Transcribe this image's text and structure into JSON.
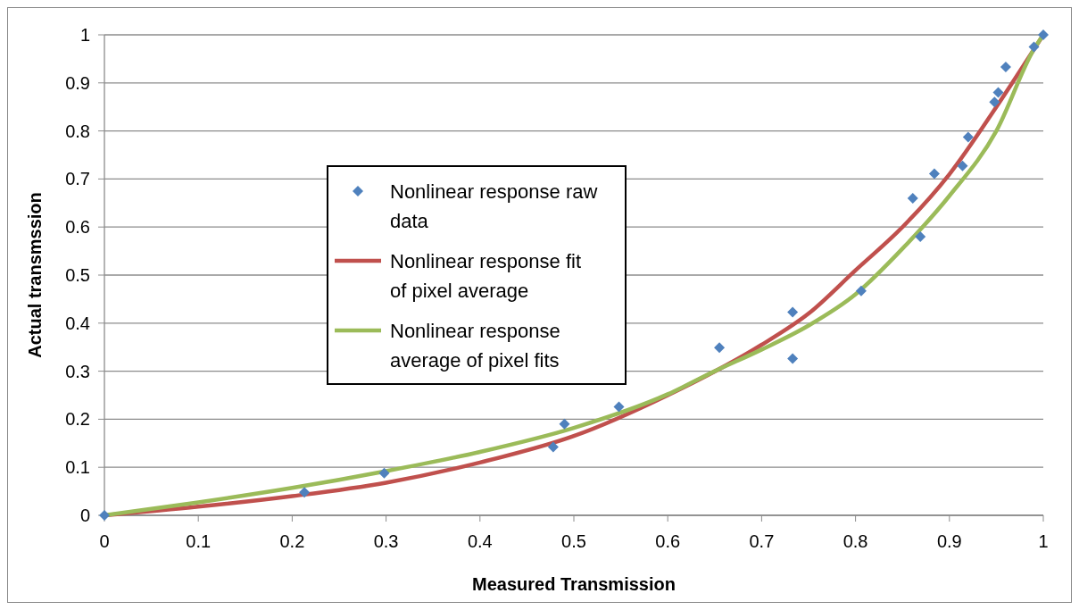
{
  "chart_data": {
    "type": "scatter",
    "xlabel": "Measured Transmission",
    "ylabel": "Actual transmssion",
    "xlim": [
      0,
      1
    ],
    "ylim": [
      0,
      1
    ],
    "xticks": [
      0,
      0.1,
      0.2,
      0.3,
      0.4,
      0.5,
      0.6,
      0.7,
      0.8,
      0.9,
      1
    ],
    "yticks": [
      0,
      0.1,
      0.2,
      0.3,
      0.4,
      0.5,
      0.6,
      0.7,
      0.8,
      0.9,
      1
    ],
    "grid": "y",
    "legend": "left",
    "series": [
      {
        "name": "Nonlinear response raw data",
        "marker": "diamond",
        "color": "#4f81bd",
        "x": [
          0,
          0.213,
          0.298,
          0.478,
          0.49,
          0.548,
          0.655,
          0.733,
          0.733,
          0.806,
          0.861,
          0.869,
          0.884,
          0.914,
          0.92,
          0.948,
          0.952,
          0.96,
          0.99,
          1
        ],
        "values": [
          0,
          0.048,
          0.088,
          0.142,
          0.19,
          0.226,
          0.349,
          0.423,
          0.326,
          0.467,
          0.66,
          0.58,
          0.711,
          0.727,
          0.787,
          0.86,
          0.88,
          0.933,
          0.975,
          1
        ]
      },
      {
        "name": "Nonlinear response fit of pixel average",
        "type": "line",
        "marker": "none",
        "color": "#c0504d",
        "x": [
          0,
          0.1,
          0.2,
          0.3,
          0.4,
          0.5,
          0.6,
          0.7,
          0.75,
          0.8,
          0.85,
          0.9,
          0.95,
          1
        ],
        "values": [
          0,
          0.018,
          0.04,
          0.068,
          0.11,
          0.165,
          0.25,
          0.355,
          0.42,
          0.51,
          0.6,
          0.71,
          0.85,
          1
        ]
      },
      {
        "name": "Nonlinear response average of pixel fits",
        "type": "line",
        "marker": "none",
        "color": "#9bbb59",
        "x": [
          0,
          0.1,
          0.2,
          0.3,
          0.4,
          0.5,
          0.6,
          0.65,
          0.7,
          0.75,
          0.8,
          0.85,
          0.9,
          0.95,
          0.99,
          1
        ],
        "values": [
          0,
          0.027,
          0.057,
          0.092,
          0.132,
          0.182,
          0.252,
          0.3,
          0.345,
          0.395,
          0.46,
          0.555,
          0.665,
          0.8,
          0.97,
          1
        ]
      }
    ]
  }
}
